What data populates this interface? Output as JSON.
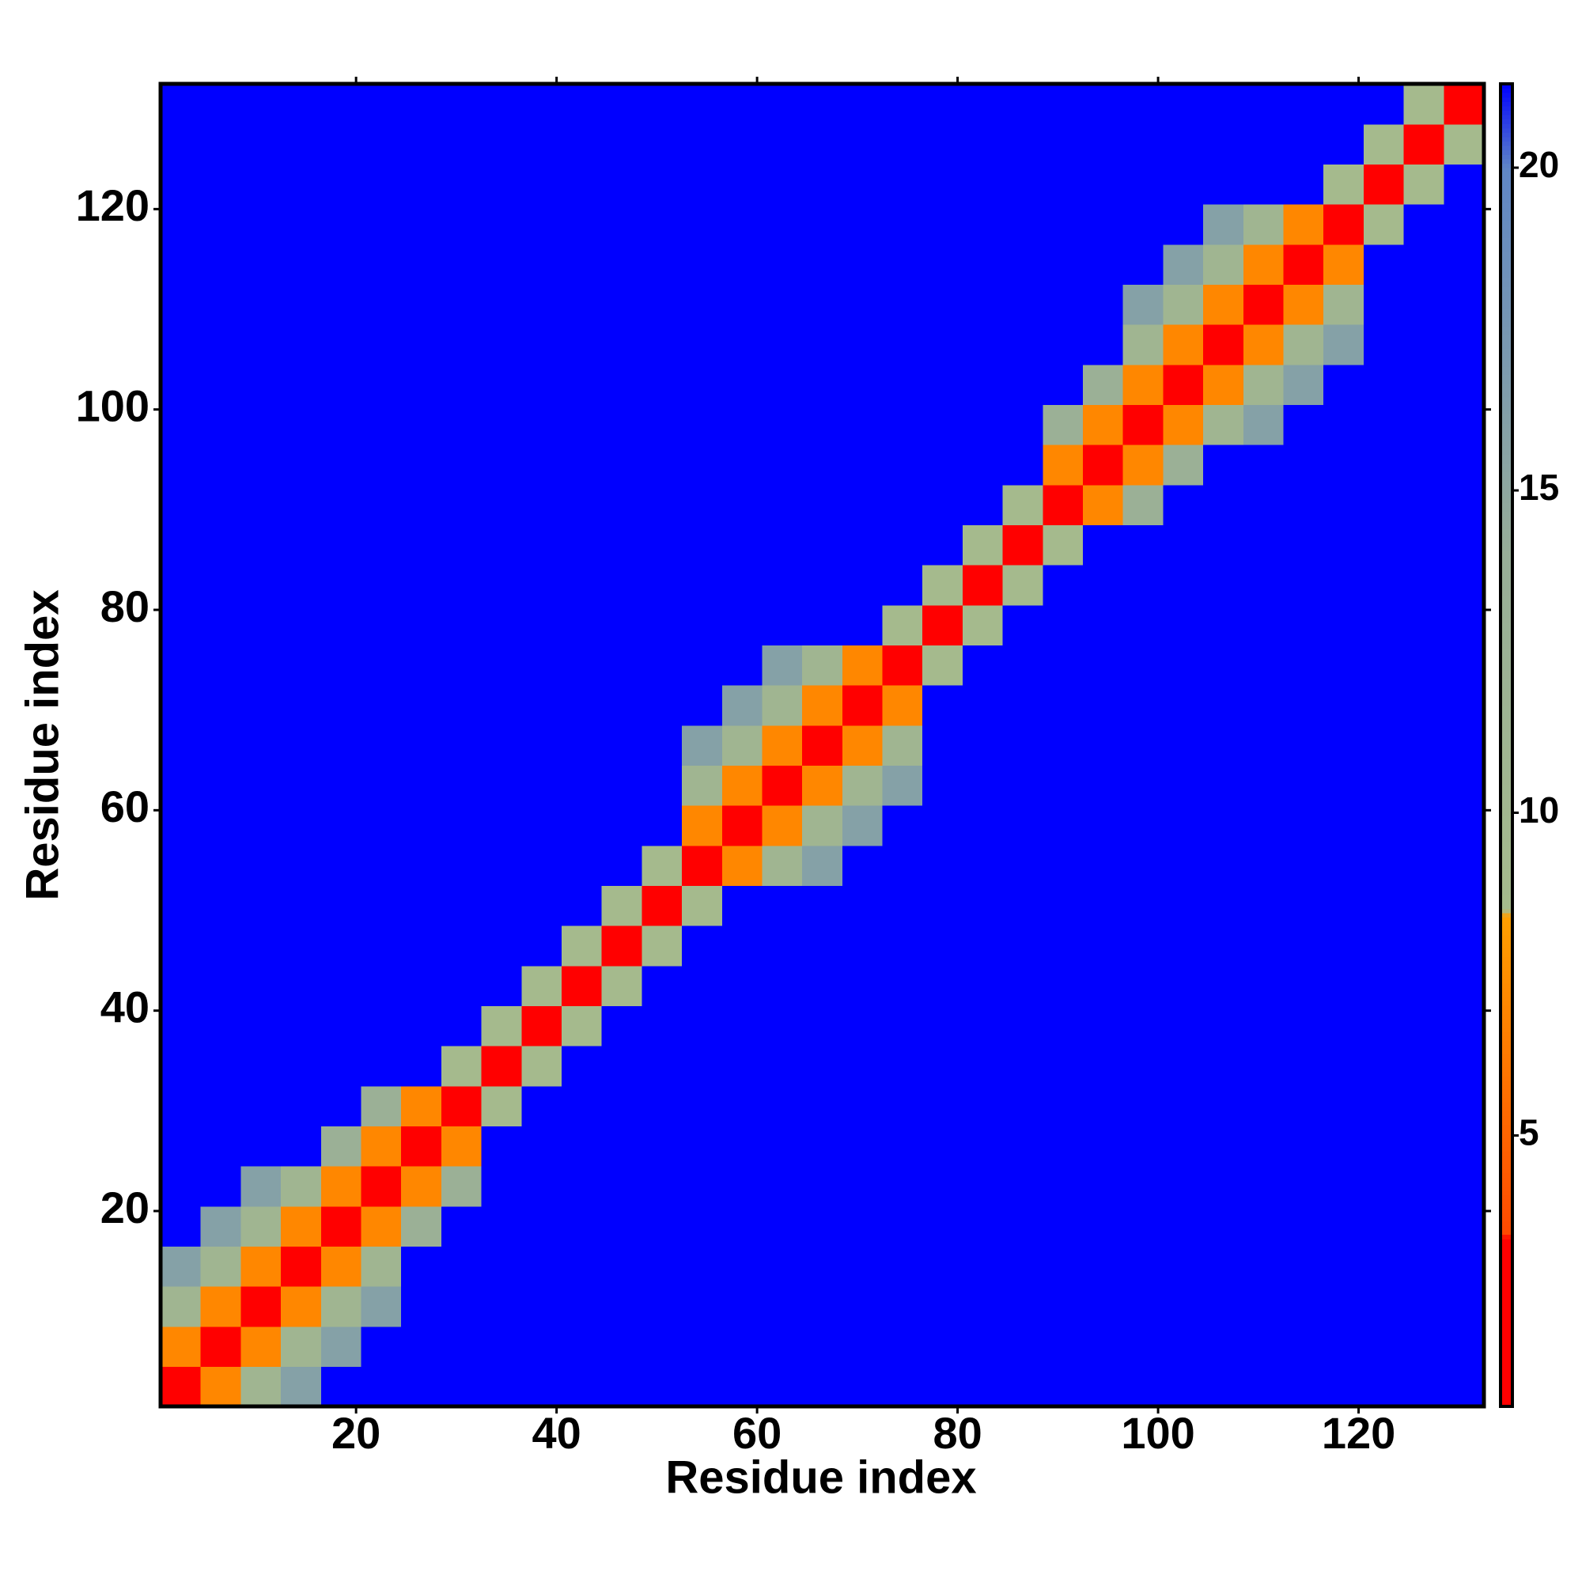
{
  "chart_data": {
    "type": "heatmap",
    "xlabel": "Residue index",
    "ylabel": "Residue index",
    "x": [
      2.5,
      6.5,
      10.5,
      14.5,
      18.5,
      22.5,
      26.5,
      30.5,
      34.5,
      38.5,
      42.5,
      46.5,
      50.5,
      54.5,
      58.5,
      62.5,
      66.5,
      70.5,
      74.5,
      78.5,
      82.5,
      86.5,
      90.5,
      94.5,
      98.5,
      102.5,
      106.5,
      110.5,
      114.5,
      118.5,
      122.5,
      126.5,
      130.5
    ],
    "y": [
      2.5,
      6.5,
      10.5,
      14.5,
      18.5,
      22.5,
      26.5,
      30.5,
      34.5,
      38.5,
      42.5,
      46.5,
      50.5,
      54.5,
      58.5,
      62.5,
      66.5,
      70.5,
      74.5,
      78.5,
      82.5,
      86.5,
      90.5,
      94.5,
      98.5,
      102.5,
      106.5,
      110.5,
      114.5,
      118.5,
      122.5,
      126.5,
      130.5
    ],
    "values": [
      [
        2,
        7,
        11,
        16,
        22,
        22,
        22,
        22,
        22,
        22,
        22,
        22,
        22,
        22,
        22,
        22,
        22,
        22,
        22,
        22,
        22,
        22,
        22,
        22,
        22,
        22,
        22,
        22,
        22,
        22,
        22,
        22,
        22
      ],
      [
        7,
        2,
        7,
        11,
        16,
        22,
        22,
        22,
        22,
        22,
        22,
        22,
        22,
        22,
        22,
        22,
        22,
        22,
        22,
        22,
        22,
        22,
        22,
        22,
        22,
        22,
        22,
        22,
        22,
        22,
        22,
        22,
        22
      ],
      [
        11,
        7,
        2,
        7,
        11,
        16,
        22,
        22,
        22,
        22,
        22,
        22,
        22,
        22,
        22,
        22,
        22,
        22,
        22,
        22,
        22,
        22,
        22,
        22,
        22,
        22,
        22,
        22,
        22,
        22,
        22,
        22,
        22
      ],
      [
        16,
        11,
        7,
        2,
        7,
        11,
        22,
        22,
        22,
        22,
        22,
        22,
        22,
        22,
        22,
        22,
        22,
        22,
        22,
        22,
        22,
        22,
        22,
        22,
        22,
        22,
        22,
        22,
        22,
        22,
        22,
        22,
        22
      ],
      [
        22,
        16,
        11,
        7,
        2,
        7,
        13,
        22,
        22,
        22,
        22,
        22,
        22,
        22,
        22,
        22,
        22,
        22,
        22,
        22,
        22,
        22,
        22,
        22,
        22,
        22,
        22,
        22,
        22,
        22,
        22,
        22,
        22
      ],
      [
        22,
        22,
        16,
        11,
        7,
        2,
        7,
        13,
        22,
        22,
        22,
        22,
        22,
        22,
        22,
        22,
        22,
        22,
        22,
        22,
        22,
        22,
        22,
        22,
        22,
        22,
        22,
        22,
        22,
        22,
        22,
        22,
        22
      ],
      [
        22,
        22,
        22,
        22,
        13,
        7,
        2,
        7,
        22,
        22,
        22,
        22,
        22,
        22,
        22,
        22,
        22,
        22,
        22,
        22,
        22,
        22,
        22,
        22,
        22,
        22,
        22,
        22,
        22,
        22,
        22,
        22,
        22
      ],
      [
        22,
        22,
        22,
        22,
        22,
        13,
        7,
        2,
        9,
        22,
        22,
        22,
        22,
        22,
        22,
        22,
        22,
        22,
        22,
        22,
        22,
        22,
        22,
        22,
        22,
        22,
        22,
        22,
        22,
        22,
        22,
        22,
        22
      ],
      [
        22,
        22,
        22,
        22,
        22,
        22,
        22,
        9,
        2,
        9,
        22,
        22,
        22,
        22,
        22,
        22,
        22,
        22,
        22,
        22,
        22,
        22,
        22,
        22,
        22,
        22,
        22,
        22,
        22,
        22,
        22,
        22,
        22
      ],
      [
        22,
        22,
        22,
        22,
        22,
        22,
        22,
        22,
        9,
        2,
        9,
        22,
        22,
        22,
        22,
        22,
        22,
        22,
        22,
        22,
        22,
        22,
        22,
        22,
        22,
        22,
        22,
        22,
        22,
        22,
        22,
        22,
        22
      ],
      [
        22,
        22,
        22,
        22,
        22,
        22,
        22,
        22,
        22,
        9,
        2,
        9,
        22,
        22,
        22,
        22,
        22,
        22,
        22,
        22,
        22,
        22,
        22,
        22,
        22,
        22,
        22,
        22,
        22,
        22,
        22,
        22,
        22
      ],
      [
        22,
        22,
        22,
        22,
        22,
        22,
        22,
        22,
        22,
        22,
        9,
        2,
        9,
        22,
        22,
        22,
        22,
        22,
        22,
        22,
        22,
        22,
        22,
        22,
        22,
        22,
        22,
        22,
        22,
        22,
        22,
        22,
        22
      ],
      [
        22,
        22,
        22,
        22,
        22,
        22,
        22,
        22,
        22,
        22,
        22,
        9,
        2,
        9,
        22,
        22,
        22,
        22,
        22,
        22,
        22,
        22,
        22,
        22,
        22,
        22,
        22,
        22,
        22,
        22,
        22,
        22,
        22
      ],
      [
        22,
        22,
        22,
        22,
        22,
        22,
        22,
        22,
        22,
        22,
        22,
        22,
        9,
        2,
        7,
        11,
        16,
        22,
        22,
        22,
        22,
        22,
        22,
        22,
        22,
        22,
        22,
        22,
        22,
        22,
        22,
        22,
        22
      ],
      [
        22,
        22,
        22,
        22,
        22,
        22,
        22,
        22,
        22,
        22,
        22,
        22,
        22,
        7,
        2,
        7,
        11,
        16,
        22,
        22,
        22,
        22,
        22,
        22,
        22,
        22,
        22,
        22,
        22,
        22,
        22,
        22,
        22
      ],
      [
        22,
        22,
        22,
        22,
        22,
        22,
        22,
        22,
        22,
        22,
        22,
        22,
        22,
        11,
        7,
        2,
        7,
        11,
        16,
        22,
        22,
        22,
        22,
        22,
        22,
        22,
        22,
        22,
        22,
        22,
        22,
        22,
        22
      ],
      [
        22,
        22,
        22,
        22,
        22,
        22,
        22,
        22,
        22,
        22,
        22,
        22,
        22,
        16,
        11,
        7,
        2,
        7,
        11,
        22,
        22,
        22,
        22,
        22,
        22,
        22,
        22,
        22,
        22,
        22,
        22,
        22,
        22
      ],
      [
        22,
        22,
        22,
        22,
        22,
        22,
        22,
        22,
        22,
        22,
        22,
        22,
        22,
        22,
        16,
        11,
        7,
        2,
        7,
        22,
        22,
        22,
        22,
        22,
        22,
        22,
        22,
        22,
        22,
        22,
        22,
        22,
        22
      ],
      [
        22,
        22,
        22,
        22,
        22,
        22,
        22,
        22,
        22,
        22,
        22,
        22,
        22,
        22,
        22,
        16,
        11,
        7,
        2,
        9,
        22,
        22,
        22,
        22,
        22,
        22,
        22,
        22,
        22,
        22,
        22,
        22,
        22
      ],
      [
        22,
        22,
        22,
        22,
        22,
        22,
        22,
        22,
        22,
        22,
        22,
        22,
        22,
        22,
        22,
        22,
        22,
        22,
        9,
        2,
        9,
        22,
        22,
        22,
        22,
        22,
        22,
        22,
        22,
        22,
        22,
        22,
        22
      ],
      [
        22,
        22,
        22,
        22,
        22,
        22,
        22,
        22,
        22,
        22,
        22,
        22,
        22,
        22,
        22,
        22,
        22,
        22,
        22,
        9,
        2,
        9,
        22,
        22,
        22,
        22,
        22,
        22,
        22,
        22,
        22,
        22,
        22
      ],
      [
        22,
        22,
        22,
        22,
        22,
        22,
        22,
        22,
        22,
        22,
        22,
        22,
        22,
        22,
        22,
        22,
        22,
        22,
        22,
        22,
        9,
        2,
        9,
        22,
        22,
        22,
        22,
        22,
        22,
        22,
        22,
        22,
        22
      ],
      [
        22,
        22,
        22,
        22,
        22,
        22,
        22,
        22,
        22,
        22,
        22,
        22,
        22,
        22,
        22,
        22,
        22,
        22,
        22,
        22,
        22,
        9,
        2,
        7,
        13,
        22,
        22,
        22,
        22,
        22,
        22,
        22,
        22
      ],
      [
        22,
        22,
        22,
        22,
        22,
        22,
        22,
        22,
        22,
        22,
        22,
        22,
        22,
        22,
        22,
        22,
        22,
        22,
        22,
        22,
        22,
        22,
        7,
        2,
        7,
        13,
        22,
        22,
        22,
        22,
        22,
        22,
        22
      ],
      [
        22,
        22,
        22,
        22,
        22,
        22,
        22,
        22,
        22,
        22,
        22,
        22,
        22,
        22,
        22,
        22,
        22,
        22,
        22,
        22,
        22,
        22,
        13,
        7,
        2,
        7,
        11,
        16,
        22,
        22,
        22,
        22,
        22
      ],
      [
        22,
        22,
        22,
        22,
        22,
        22,
        22,
        22,
        22,
        22,
        22,
        22,
        22,
        22,
        22,
        22,
        22,
        22,
        22,
        22,
        22,
        22,
        22,
        13,
        7,
        2,
        7,
        11,
        16,
        22,
        22,
        22,
        22
      ],
      [
        22,
        22,
        22,
        22,
        22,
        22,
        22,
        22,
        22,
        22,
        22,
        22,
        22,
        22,
        22,
        22,
        22,
        22,
        22,
        22,
        22,
        22,
        22,
        22,
        11,
        7,
        2,
        7,
        11,
        16,
        22,
        22,
        22
      ],
      [
        22,
        22,
        22,
        22,
        22,
        22,
        22,
        22,
        22,
        22,
        22,
        22,
        22,
        22,
        22,
        22,
        22,
        22,
        22,
        22,
        22,
        22,
        22,
        22,
        16,
        11,
        7,
        2,
        7,
        11,
        22,
        22,
        22
      ],
      [
        22,
        22,
        22,
        22,
        22,
        22,
        22,
        22,
        22,
        22,
        22,
        22,
        22,
        22,
        22,
        22,
        22,
        22,
        22,
        22,
        22,
        22,
        22,
        22,
        22,
        16,
        11,
        7,
        2,
        7,
        22,
        22,
        22
      ],
      [
        22,
        22,
        22,
        22,
        22,
        22,
        22,
        22,
        22,
        22,
        22,
        22,
        22,
        22,
        22,
        22,
        22,
        22,
        22,
        22,
        22,
        22,
        22,
        22,
        22,
        22,
        16,
        11,
        7,
        2,
        9,
        22,
        22
      ],
      [
        22,
        22,
        22,
        22,
        22,
        22,
        22,
        22,
        22,
        22,
        22,
        22,
        22,
        22,
        22,
        22,
        22,
        22,
        22,
        22,
        22,
        22,
        22,
        22,
        22,
        22,
        22,
        22,
        22,
        9,
        2,
        9,
        22
      ],
      [
        22,
        22,
        22,
        22,
        22,
        22,
        22,
        22,
        22,
        22,
        22,
        22,
        22,
        22,
        22,
        22,
        22,
        22,
        22,
        22,
        22,
        22,
        22,
        22,
        22,
        22,
        22,
        22,
        22,
        22,
        9,
        2,
        9
      ],
      [
        22,
        22,
        22,
        22,
        22,
        22,
        22,
        22,
        22,
        22,
        22,
        22,
        22,
        22,
        22,
        22,
        22,
        22,
        22,
        22,
        22,
        22,
        22,
        22,
        22,
        22,
        22,
        22,
        22,
        22,
        22,
        9,
        2
      ]
    ],
    "xlim": [
      0.5,
      132.5
    ],
    "ylim": [
      0.5,
      132.5
    ],
    "xticks": [
      20,
      40,
      60,
      80,
      100,
      120
    ],
    "yticks": [
      20,
      40,
      60,
      80,
      100,
      120
    ],
    "clim": [
      0.8,
      21.3
    ],
    "cticks": [
      5,
      10,
      15,
      20
    ],
    "colorscale": [
      {
        "value": 0.8,
        "color": "#ff0000"
      },
      {
        "value": 3.4,
        "color": "#ff0000"
      },
      {
        "value": 3.5,
        "color": "#ff4a00"
      },
      {
        "value": 8.4,
        "color": "#ff9f00"
      },
      {
        "value": 8.5,
        "color": "#a6bb8c"
      },
      {
        "value": 14,
        "color": "#98ae98"
      },
      {
        "value": 20,
        "color": "#5f86c6"
      },
      {
        "value": 21.3,
        "color": "#0000ff"
      }
    ]
  }
}
